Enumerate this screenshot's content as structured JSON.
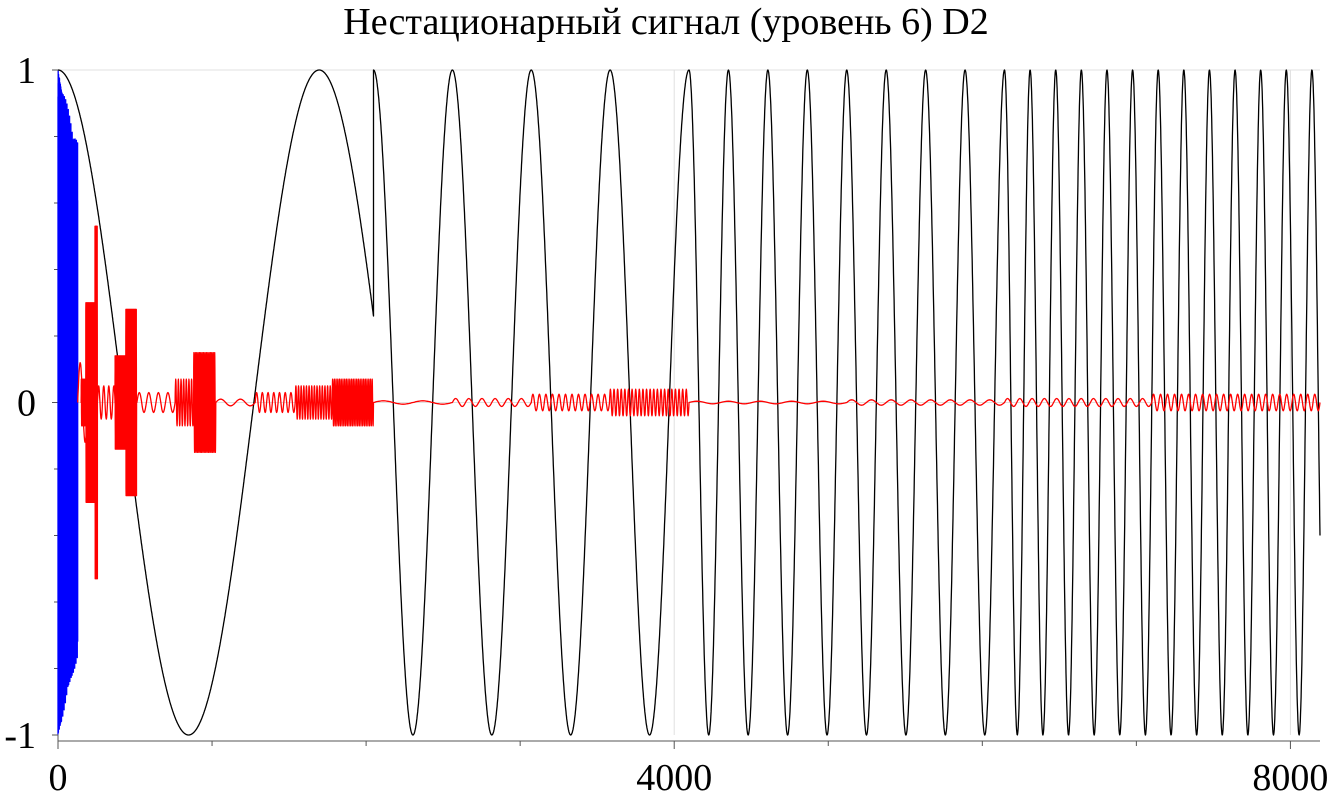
{
  "chart_data": {
    "type": "line",
    "title": "Нестационарный сигнал (уровень 6) D2",
    "xlabel": "",
    "ylabel": "",
    "xlim": [
      0,
      8192
    ],
    "ylim": [
      -1,
      1
    ],
    "x_ticks": [
      {
        "value": 0,
        "label": "0"
      },
      {
        "value": 4000,
        "label": "4000"
      },
      {
        "value": 8000,
        "label": "8000"
      }
    ],
    "x_minor_ticks": [
      1000,
      2000,
      3000,
      5000,
      6000,
      7000
    ],
    "y_ticks": [
      {
        "value": 1,
        "label": "1"
      },
      {
        "value": 0,
        "label": "0"
      },
      {
        "value": -1,
        "label": "-1"
      }
    ],
    "y_minor_ticks": [
      -0.8,
      -0.6,
      -0.4,
      -0.2,
      0.2,
      0.4,
      0.6,
      0.8
    ],
    "grid": true,
    "legend": "none",
    "series": [
      {
        "color": "#000000",
        "kind": "piecewise-sinusoid",
        "segments": [
          {
            "x_start": 0,
            "x_end": 2048,
            "y_start": 1.0,
            "y_end": 0.26,
            "full_cycles_approx": 1.05
          },
          {
            "x_start": 2048,
            "x_end": 4096,
            "y_start": 1.0,
            "y_end": 1.0,
            "full_cycles_approx": 4
          },
          {
            "x_start": 4096,
            "x_end": 6144,
            "y_start": 1.0,
            "y_end": 1.0,
            "full_cycles_approx": 8
          },
          {
            "x_start": 6144,
            "x_end": 8192,
            "y_start": 1.0,
            "y_end": -0.4,
            "full_cycles_approx": 12.3
          }
        ]
      },
      {
        "color": "#0000ff",
        "kind": "dense-oscillation",
        "x_range": [
          0,
          128
        ],
        "amplitude_max": 1.0,
        "amplitude_min": 0.65
      },
      {
        "color": "#ff0000",
        "kind": "wavelet-detail",
        "bursts": [
          {
            "x_start": 128,
            "x_end": 256,
            "amplitude": 0.12,
            "cycles": 2
          },
          {
            "x_start": 150,
            "x_end": 180,
            "amplitude": 0.07,
            "cycles": 6
          },
          {
            "x_start": 180,
            "x_end": 240,
            "amplitude": 0.3,
            "cycles": 18
          },
          {
            "x_start": 240,
            "x_end": 256,
            "amplitude": 0.53,
            "cycles": 8
          },
          {
            "x_start": 256,
            "x_end": 420,
            "amplitude": 0.05,
            "cycles": 5
          },
          {
            "x_start": 370,
            "x_end": 440,
            "amplitude": 0.14,
            "cycles": 25
          },
          {
            "x_start": 440,
            "x_end": 510,
            "amplitude": 0.28,
            "cycles": 30
          },
          {
            "x_start": 512,
            "x_end": 760,
            "amplitude": 0.03,
            "cycles": 4
          },
          {
            "x_start": 760,
            "x_end": 880,
            "amplitude": 0.07,
            "cycles": 7
          },
          {
            "x_start": 880,
            "x_end": 1024,
            "amplitude": 0.15,
            "cycles": 16
          },
          {
            "x_start": 1024,
            "x_end": 1280,
            "amplitude": 0.01,
            "cycles": 2
          },
          {
            "x_start": 1280,
            "x_end": 1540,
            "amplitude": 0.03,
            "cycles": 7
          },
          {
            "x_start": 1540,
            "x_end": 1780,
            "amplitude": 0.05,
            "cycles": 14
          },
          {
            "x_start": 1780,
            "x_end": 2048,
            "amplitude": 0.07,
            "cycles": 24
          },
          {
            "x_start": 2048,
            "x_end": 2560,
            "amplitude": 0.005,
            "cycles": 2
          },
          {
            "x_start": 2560,
            "x_end": 3072,
            "amplitude": 0.012,
            "cycles": 6
          },
          {
            "x_start": 3072,
            "x_end": 3580,
            "amplitude": 0.025,
            "cycles": 12
          },
          {
            "x_start": 3580,
            "x_end": 4096,
            "amplitude": 0.04,
            "cycles": 22
          },
          {
            "x_start": 4096,
            "x_end": 5120,
            "amplitude": 0.004,
            "cycles": 5
          },
          {
            "x_start": 5120,
            "x_end": 6144,
            "amplitude": 0.008,
            "cycles": 8
          },
          {
            "x_start": 6144,
            "x_end": 7100,
            "amplitude": 0.012,
            "cycles": 12
          },
          {
            "x_start": 7100,
            "x_end": 8192,
            "amplitude": 0.025,
            "cycles": 24
          }
        ]
      }
    ]
  }
}
